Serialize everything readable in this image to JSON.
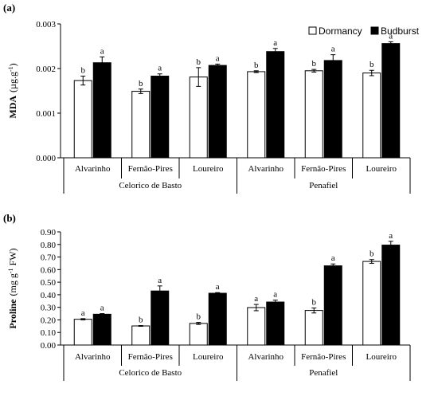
{
  "chart_data": [
    {
      "type": "bar",
      "panel_label": "(a)",
      "ylabel": "MDA (µg.g-1)",
      "ylabel_parts": {
        "main": "MDA",
        "unit_open": "(µg.g",
        "sup": "-1",
        "unit_close": ")"
      },
      "ylim": [
        0,
        0.003
      ],
      "yticks": [
        "0.000",
        "0.001",
        "0.002",
        "0.003"
      ],
      "categories": [
        "Alvarinho",
        "Fernão-Pires",
        "Loureiro",
        "Alvarinho",
        "Fernão-Pires",
        "Loureiro"
      ],
      "groups": [
        {
          "name": "Celorico de Basto",
          "span": [
            0,
            2
          ]
        },
        {
          "name": "Penafiel",
          "span": [
            3,
            5
          ]
        }
      ],
      "legend": {
        "position": "top-right",
        "entries": [
          "Dormancy",
          "Budburst"
        ]
      },
      "series": [
        {
          "name": "Dormancy",
          "color": "#ffffff",
          "values": [
            0.00173,
            0.00149,
            0.00181,
            0.00193,
            0.00195,
            0.0019
          ],
          "errors": [
            0.0001,
            5e-05,
            0.00021,
            2e-05,
            3e-05,
            6e-05
          ],
          "letters": [
            "b",
            "b",
            "b",
            "b",
            "b",
            "b"
          ]
        },
        {
          "name": "Budburst",
          "color": "#000000",
          "values": [
            0.00213,
            0.00183,
            0.00207,
            0.00238,
            0.00218,
            0.00256
          ],
          "errors": [
            0.00013,
            5e-05,
            3e-05,
            7e-05,
            0.00013,
            4e-05
          ],
          "letters": [
            "a",
            "a",
            "a",
            "a",
            "a",
            "a"
          ]
        }
      ]
    },
    {
      "type": "bar",
      "panel_label": "(b)",
      "ylabel": "Proline (mg g-1 FW)",
      "ylabel_parts": {
        "main": "Proline",
        "unit_open": "(mg g",
        "sup": "-1",
        "unit_close": " FW)"
      },
      "ylim": [
        0,
        0.9
      ],
      "yticks": [
        "0.00",
        "0.10",
        "0.20",
        "0.30",
        "0.40",
        "0.50",
        "0.60",
        "0.70",
        "0.80",
        "0.90"
      ],
      "categories": [
        "Alvarinho",
        "Fernão-Pires",
        "Loureiro",
        "Alvarinho",
        "Fernão-Pires",
        "Loureiro"
      ],
      "groups": [
        {
          "name": "Celorico de Basto",
          "span": [
            0,
            2
          ]
        },
        {
          "name": "Penafiel",
          "span": [
            3,
            5
          ]
        }
      ],
      "series": [
        {
          "name": "Dormancy",
          "color": "#ffffff",
          "values": [
            0.205,
            0.152,
            0.172,
            0.298,
            0.275,
            0.665
          ],
          "errors": [
            0.005,
            0.003,
            0.008,
            0.025,
            0.02,
            0.015
          ],
          "letters": [
            "a",
            "b",
            "b",
            "a",
            "b",
            "b"
          ]
        },
        {
          "name": "Budburst",
          "color": "#000000",
          "values": [
            0.245,
            0.43,
            0.412,
            0.342,
            0.63,
            0.795
          ],
          "errors": [
            0.005,
            0.04,
            0.005,
            0.015,
            0.015,
            0.03
          ],
          "letters": [
            "a",
            "a",
            "a",
            "a",
            "a",
            "a"
          ]
        }
      ]
    }
  ]
}
